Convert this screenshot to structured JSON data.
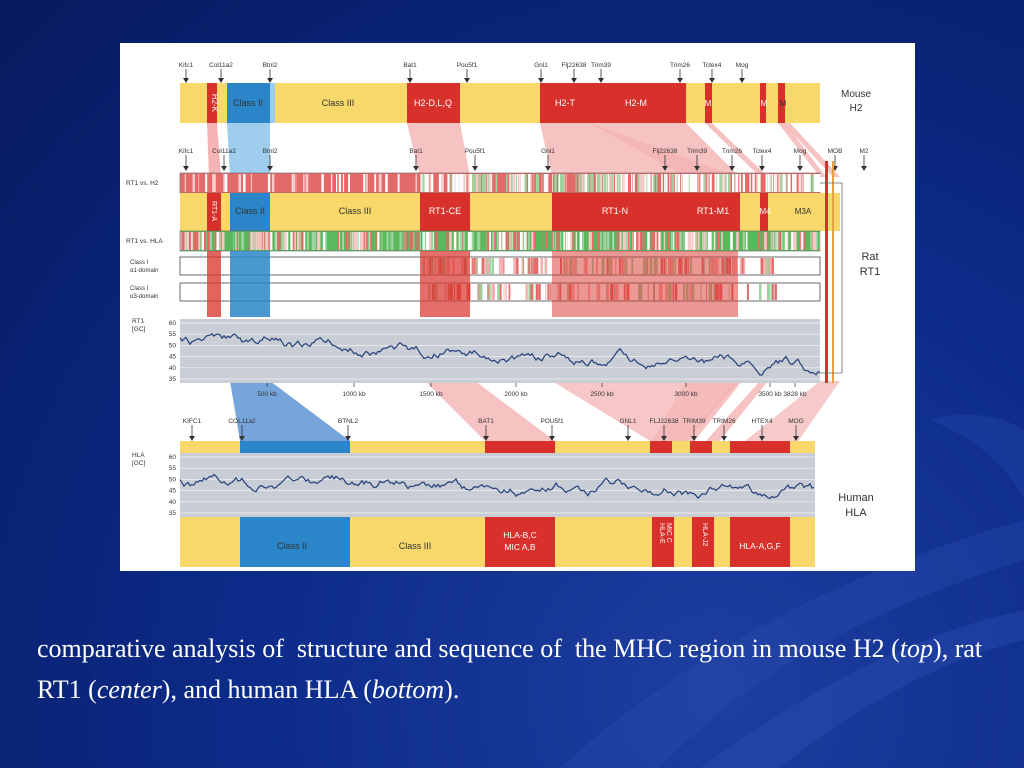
{
  "figure": {
    "mouse": {
      "genes": [
        "Kifc1",
        "Col11a2",
        "Btnl2",
        "Bat1",
        "Pou5f1",
        "Gnl1",
        "Flj22638",
        "Trim39",
        "Trim26",
        "Tctex4",
        "Mog"
      ],
      "regions": [
        "H2-K",
        "Class II",
        "Class III",
        "H2-D,L,Q",
        "H2-T",
        "H2-M",
        "M",
        "M",
        "M"
      ],
      "label": [
        "Mouse",
        "H2"
      ]
    },
    "rat": {
      "genes": [
        "Kifc1",
        "Col11a2",
        "Btnl2",
        "Bat1",
        "Pou5f1",
        "Gnl1",
        "Flj22638",
        "Trim39",
        "Trim26",
        "Tctex4",
        "Mog",
        "MOB",
        "M2"
      ],
      "regions": [
        "RT1-A",
        "Class II",
        "Class III",
        "RT1-CE",
        "RT1-N",
        "RT1-M1",
        "M4",
        "M3A"
      ],
      "track_labels": [
        "RT1 vs. H2",
        "RT1 vs. HLA"
      ],
      "class1_a1": [
        "Class I",
        "α1-domain"
      ],
      "class1_a3": [
        "Class I",
        "α3-domain"
      ],
      "gc_label": [
        "RT1",
        "[GC]"
      ],
      "gc_ticks": [
        "60",
        "55",
        "50",
        "45",
        "40",
        "35"
      ],
      "kb_ticks": [
        "500 kb",
        "1000 kb",
        "1500 kb",
        "2000 kb",
        "2500 kb",
        "3000 kb",
        "3500 kb",
        "3828 kb"
      ],
      "label": [
        "Rat",
        "RT1"
      ]
    },
    "human": {
      "genes": [
        "KIFC1",
        "COL11a2",
        "BTNL2",
        "BAT1",
        "POU5f1",
        "GNL1",
        "FLJ22638",
        "TRIM39",
        "TRIM26",
        "HTEX4",
        "MOG"
      ],
      "gc_label": [
        "HLA",
        "[GC]"
      ],
      "gc_ticks": [
        "60",
        "55",
        "50",
        "45",
        "40",
        "35"
      ],
      "regions": [
        "Class II",
        "Class III",
        "HLA-B,C",
        "MIC A,B",
        "HLA-E",
        "MIC C",
        "HLA-J2",
        "HLA-A,G,F"
      ],
      "label": [
        "Human",
        "HLA"
      ]
    }
  },
  "caption": {
    "part1": "comparative analysis of  structure and sequence of  the MHC region in mouse H2 (",
    "top": "top",
    "part2": "), rat RT1 (",
    "center": "center",
    "part3": "), and human HLA (",
    "bottom": "bottom",
    "part4": ")."
  }
}
